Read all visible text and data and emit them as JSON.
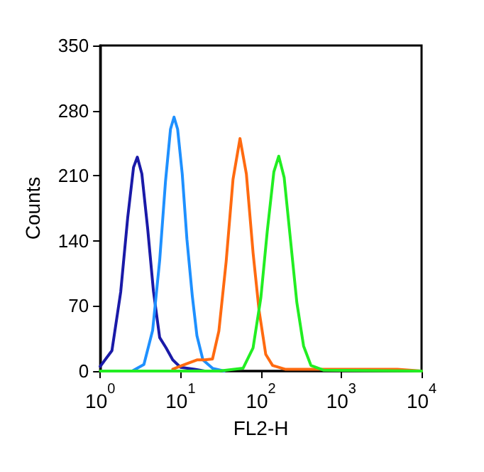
{
  "chart_data": {
    "type": "line",
    "xlabel": "FL2-H",
    "ylabel": "Counts",
    "log": "x",
    "grid": false,
    "marker": "none",
    "line_style": "solid",
    "xlim": [
      1,
      10000
    ],
    "xticks": [
      {
        "value": 1,
        "label": "10$^{0}$"
      },
      {
        "value": 10,
        "label": "10$^{1}$"
      },
      {
        "value": 100,
        "label": "10$^{2}$"
      },
      {
        "value": 1000,
        "label": "10$^{3}$"
      },
      {
        "value": 10000,
        "label": "10$^{4}$"
      }
    ],
    "ylim": [
      0,
      350
    ],
    "yticks": [
      0,
      70,
      140,
      210,
      280,
      350
    ],
    "series": [
      {
        "color": "#1a1aa8",
        "x": [
          1,
          1.4,
          1.8,
          2.2,
          2.6,
          2.9,
          3.3,
          3.9,
          4.6,
          5.5,
          6.6,
          8,
          10,
          15,
          20
        ],
        "values": [
          5,
          22,
          85,
          165,
          219,
          230,
          212,
          153,
          86,
          36,
          25,
          12,
          4,
          2,
          0
        ]
      },
      {
        "color": "#1e90ff",
        "x": [
          2.5,
          3.5,
          4.5,
          5.5,
          6.5,
          7.5,
          8.3,
          9.2,
          10.5,
          12,
          14,
          16,
          19,
          25,
          35
        ],
        "values": [
          0,
          7,
          44,
          119,
          204,
          260,
          273,
          260,
          212,
          142,
          81,
          38,
          12,
          3,
          0
        ]
      },
      {
        "color": "#ff6a10",
        "x": [
          8,
          12,
          16,
          20,
          25,
          30,
          37,
          45,
          55,
          66,
          80,
          95,
          115,
          140,
          200,
          1000,
          5000,
          10000
        ],
        "values": [
          2,
          8,
          12,
          12,
          13,
          43,
          118,
          206,
          250,
          212,
          127,
          65,
          18,
          6,
          2,
          2,
          2,
          0
        ]
      },
      {
        "color": "#22ee22",
        "x": [
          1,
          30,
          60,
          80,
          100,
          120,
          145,
          167,
          195,
          230,
          280,
          340,
          420,
          600,
          10000
        ],
        "values": [
          0,
          0,
          3,
          25,
          79,
          150,
          214,
          231,
          208,
          147,
          74,
          27,
          6,
          1,
          0
        ]
      }
    ]
  }
}
